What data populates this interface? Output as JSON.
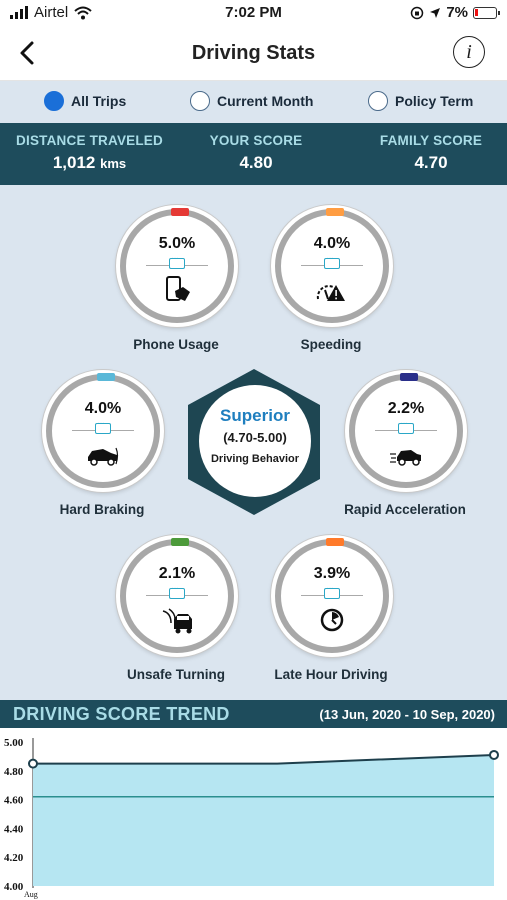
{
  "status_bar": {
    "carrier": "Airtel",
    "time": "7:02 PM",
    "battery": "7%"
  },
  "nav": {
    "title": "Driving Stats",
    "back_icon": "chevron-left-icon",
    "info_icon": "info-icon"
  },
  "filters": [
    {
      "label": "All Trips",
      "selected": true
    },
    {
      "label": "Current Month",
      "selected": false
    },
    {
      "label": "Policy Term",
      "selected": false
    }
  ],
  "summary": {
    "distance_label": "DISTANCE TRAVELED",
    "distance_value": "1,012",
    "distance_unit": "kms",
    "score_label": "YOUR SCORE",
    "score_value": "4.80",
    "family_label": "FAMILY SCORE",
    "family_value": "4.70"
  },
  "gauges": [
    {
      "label": "Phone Usage",
      "value": "5.0%",
      "color": "#e53935",
      "icon": "phone-usage-icon"
    },
    {
      "label": "Speeding",
      "value": "4.0%",
      "color": "#ff9d42",
      "icon": "speedometer-warning-icon"
    },
    {
      "label": "Hard Braking",
      "value": "4.0%",
      "color": "#5ab8d8",
      "icon": "car-braking-icon"
    },
    {
      "label": "Rapid Acceleration",
      "value": "2.2%",
      "color": "#2a2f8a",
      "icon": "car-acceleration-icon"
    },
    {
      "label": "Unsafe Turning",
      "value": "2.1%",
      "color": "#4c9a3a",
      "icon": "car-turning-icon"
    },
    {
      "label": "Late Hour Driving",
      "value": "3.9%",
      "color": "#ff7a2a",
      "icon": "clock-icon"
    }
  ],
  "behavior": {
    "rank": "Superior",
    "range": "(4.70-5.00)",
    "label": "Driving Behavior"
  },
  "trend": {
    "title": "DRIVING SCORE TREND",
    "range": "(13 Jun, 2020 - 10 Sep, 2020)"
  },
  "chart_data": {
    "type": "area",
    "ylim": [
      4.0,
      5.0
    ],
    "yticks": [
      "5.00",
      "4.80",
      "4.60",
      "4.40",
      "4.20",
      "4.00"
    ],
    "xtick_labels": [
      "Aug"
    ],
    "x": [
      "13 Jun, 2020",
      "10 Sep, 2020"
    ],
    "series": [
      {
        "values": [
          4.85,
          4.91
        ]
      }
    ],
    "reference_line": 4.62
  }
}
